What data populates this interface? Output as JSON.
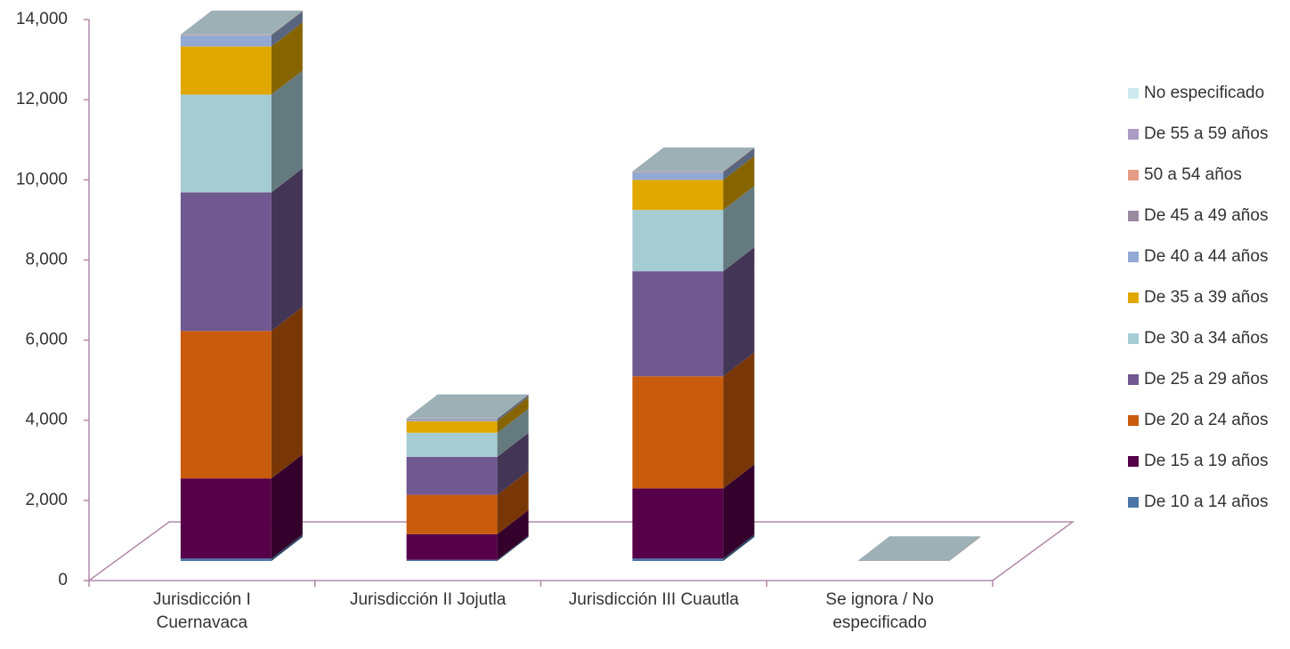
{
  "chart_data": {
    "type": "bar3d_stacked",
    "categories": [
      "Jurisdicción I Cuernavaca",
      "Jurisdicción II Jojutla",
      "Jurisdicción III Cuautla",
      "Se ignora / No especificado"
    ],
    "series": [
      {
        "name": "De 10 a 14 años",
        "color": "#4a77a8",
        "values": [
          60,
          30,
          60,
          2
        ]
      },
      {
        "name": "De 15 a 19 años",
        "color": "#560049",
        "values": [
          2000,
          640,
          1750,
          3
        ]
      },
      {
        "name": "De 20 a 24 años",
        "color": "#c95b0c",
        "values": [
          3680,
          980,
          2800,
          3
        ]
      },
      {
        "name": "De 25 a 29 años",
        "color": "#705890",
        "values": [
          3460,
          950,
          2620,
          2
        ]
      },
      {
        "name": "De 30 a 34 años",
        "color": "#a6ccd3",
        "values": [
          2440,
          600,
          1530,
          2
        ]
      },
      {
        "name": "De 35 a 39 años",
        "color": "#e0a800",
        "values": [
          1200,
          290,
          750,
          1
        ]
      },
      {
        "name": "De 40 a 44 años",
        "color": "#91a9d4",
        "values": [
          270,
          40,
          180,
          1
        ]
      },
      {
        "name": "De 45 a 49 años",
        "color": "#9b8aa0",
        "values": [
          15,
          20,
          20,
          1
        ]
      },
      {
        "name": "50 a 54 años",
        "color": "#e59c84",
        "values": [
          5,
          3,
          5,
          1
        ]
      },
      {
        "name": "De 55 a 59 años",
        "color": "#a99bc4",
        "values": [
          2,
          1,
          2,
          1
        ]
      },
      {
        "name": "No especificado",
        "color": "#cde8ef",
        "values": [
          5,
          3,
          5,
          1
        ]
      }
    ],
    "ylim": [
      0,
      14000
    ],
    "yticks": [
      0,
      {
        "value": 2000,
        "label": "2,000"
      },
      {
        "value": 4000,
        "label": "4,000"
      },
      {
        "value": 6000,
        "label": "6,000"
      },
      {
        "value": 8000,
        "label": "8,000"
      },
      {
        "value": 10000,
        "label": "10,000"
      },
      {
        "value": 12000,
        "label": "12,000"
      },
      {
        "value": 14000,
        "label": "14,000"
      }
    ],
    "legend": "right"
  }
}
